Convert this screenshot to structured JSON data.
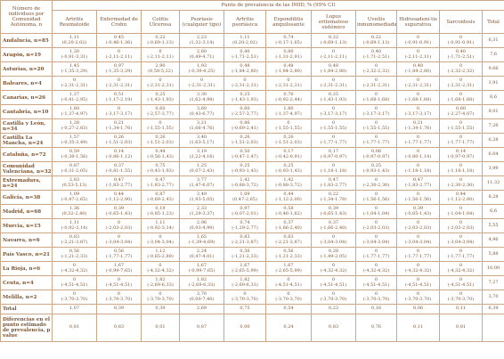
{
  "header": {
    "row_header": "Número de individuos por Comunidad Autónoma, n",
    "group_header": "Punto de prevalencia de las IMID, % (95% CI)",
    "columns": [
      "Artritis Reumatoide",
      "Enfermedad de Crohn",
      "Colitis Ulcerosa",
      "Psoriasis (cualquier tipo)",
      "Artritis psoriásica",
      "Espondilitis anquilosante",
      "Lupus eritematoso sistémico",
      "Uveítis inmunomediada",
      "Hidrosadeni-tis supurativa",
      "Sarcoidosis",
      "Total"
    ]
  },
  "rows": [
    {
      "region": "Andalucía, n=85",
      "cells": [
        [
          "1,11",
          "(0,20-2,02)"
        ],
        [
          "0,45",
          "(-0,46-1,36)"
        ],
        [
          "0,22",
          "(-0,69-1,13)"
        ],
        [
          "2,23",
          "(1,32-3,14)"
        ],
        [
          "1,11",
          "(0,20-2,02)"
        ],
        [
          "0,74",
          "(-0,17-1,65)"
        ],
        [
          "0,22",
          "(-0,69-1,13)"
        ],
        [
          "0,22",
          "(-0,69-1,13)"
        ],
        [
          "0",
          "(-0,91-0,91)"
        ],
        [
          "0",
          "(-0,91-0,91)"
        ],
        [
          "6,31",
          ""
        ]
      ]
    },
    {
      "region": "Aragón, n=19",
      "cells": [
        [
          "1,20",
          "(-0,91-3,31)"
        ],
        [
          "0",
          "(-2,11-2,11)"
        ],
        [
          "0",
          "(-2,11-2,11)"
        ],
        [
          "2,60",
          "(0,49-4,71)"
        ],
        [
          "0,40",
          "(-1,71-2,51)"
        ],
        [
          "0,80",
          "(-1,31-2,91)"
        ],
        [
          "0",
          "(-2,11-2,11)"
        ],
        [
          "0,40",
          "(-1,71-2,51)"
        ],
        [
          "0",
          "(-2,11-2,11)"
        ],
        [
          "0,40",
          "(-1,71-2,51)"
        ],
        [
          "7,6",
          ""
        ]
      ]
    },
    {
      "region": "Asturias, n=20",
      "cells": [
        [
          "1,45",
          "(-1,35-3,29)"
        ],
        [
          "0,97",
          "(-1,35-3,29)"
        ],
        [
          "2,90",
          "(0,58-5,22)"
        ],
        [
          "1,93",
          "(-0,39-4,25)"
        ],
        [
          "0,48",
          "(-1,84-2,80)"
        ],
        [
          "0,48",
          "(-1,84-2,80)"
        ],
        [
          "0,48",
          "(-1,84-2,80)"
        ],
        [
          "0",
          "(-2,32-2,32)"
        ],
        [
          "0,48",
          "(-1,84-2,80)"
        ],
        [
          "0",
          "(-2,32-2,32)"
        ],
        [
          "9,66",
          ""
        ]
      ]
    },
    {
      "region": "Baleares, n=4",
      "cells": [
        [
          "0",
          "(-2,31-2,31)"
        ],
        [
          "0",
          "(-2,31-2,31)"
        ],
        [
          "0",
          "(-2,31-2,31)"
        ],
        [
          "0",
          "(-2,31-2,31)"
        ],
        [
          "0",
          "(-2,31-2,31)"
        ],
        [
          "0",
          "(-2,31-2,31)"
        ],
        [
          "0",
          "(-2,31-2,31)"
        ],
        [
          "0",
          "(-2,31-2,31)"
        ],
        [
          "0",
          "(-2,31-2,31)"
        ],
        [
          "0",
          "(-2,31-2,31)"
        ],
        [
          "1,91",
          ""
        ]
      ]
    },
    {
      "region": "Canarias, n=26",
      "cells": [
        [
          "1,27",
          "(-0,41-2,95)"
        ],
        [
          "0,51",
          "(-1,17-2,19)"
        ],
        [
          "0,25",
          "(-1,43-1,93)"
        ],
        [
          "3,30",
          "(1,62-4,98)"
        ],
        [
          "0,25",
          "(-1,43-1,93)"
        ],
        [
          "0,76",
          "(-0,92-2,44)"
        ],
        [
          "0,25",
          "(-1,43-1,93)"
        ],
        [
          "0",
          "(-1,68-1,68)"
        ],
        [
          "0",
          "(-1,68-1,68)"
        ],
        [
          "0",
          "(-1,68-1,68)"
        ],
        [
          "6,6",
          ""
        ]
      ]
    },
    {
      "region": "Cantabria, n=10",
      "cells": [
        [
          "1,80",
          "(-1,37-4,97)"
        ],
        [
          "0",
          "(-3,17-3,17)"
        ],
        [
          "0,60",
          "(-2,57-3,77)"
        ],
        [
          "3,60",
          "(0,43-6,77)"
        ],
        [
          "0,60",
          "(-2,57-3,77)"
        ],
        [
          "1,80",
          "(-1,37-4,97)"
        ],
        [
          "0",
          "(-3,17-3,17)"
        ],
        [
          "0",
          "(-3,17-3,17)"
        ],
        [
          "0",
          "(-3,17-3,17)"
        ],
        [
          "0,60",
          "(-2,27-4,07)"
        ],
        [
          "9,01",
          ""
        ]
      ]
    },
    {
      "region": "Castilla y León, n=34",
      "cells": [
        [
          "1,28",
          "(-0,27-2,83)"
        ],
        [
          "0,21",
          "(-1,34-1,76)"
        ],
        [
          "0",
          "(-1,55-1,55)"
        ],
        [
          "3,21",
          "(1,66-4,76)"
        ],
        [
          "0,86",
          "(-0,69-2,41)"
        ],
        [
          "0",
          "(-1,55-1,55)"
        ],
        [
          "0",
          "(-1,55-1,55)"
        ],
        [
          "0",
          "(-1,55-1,55)"
        ],
        [
          "0,21",
          "(-1,34-1,76)"
        ],
        [
          "0",
          "(-1,55-1,55)"
        ],
        [
          "7,26",
          ""
        ]
      ]
    },
    {
      "region": "Castilla La Mancha, n=24",
      "cells": [
        [
          "1,57",
          "(-0,35-3,49)"
        ],
        [
          "0,26",
          "(-1,51-2,03)"
        ],
        [
          "0,26",
          "(-1,51-2,03)"
        ],
        [
          "3,40",
          "(1,63-5,17)"
        ],
        [
          "0,26",
          "(-1,51-2,03)"
        ],
        [
          "0,26",
          "(-1,51-2,03)"
        ],
        [
          "0",
          "(-1,77-1,77)"
        ],
        [
          "0",
          "(-1,77-1,77)"
        ],
        [
          "0",
          "(-1,77-1,77)"
        ],
        [
          "0",
          "(-1,77-1,77)"
        ],
        [
          "6,28",
          ""
        ]
      ]
    },
    {
      "region": "Cataluña, n=72",
      "cells": [
        [
          "0,59",
          "(-0,38-1,56)"
        ],
        [
          "0,14",
          "(-0,86-1,12)"
        ],
        [
          "0,44",
          "(-0,56-1,43)"
        ],
        [
          "3,19",
          "(2,22-4,16)"
        ],
        [
          "0,50",
          "(-0,47-1,47)"
        ],
        [
          "0,17",
          "(-0,42-0,91)"
        ],
        [
          "0,17",
          "(-0,97-0,97)"
        ],
        [
          "0,06",
          "(-0,97-0,97)"
        ],
        [
          "0",
          "(-0,80-1,14)"
        ],
        [
          "0,14",
          "(-0,97-0,97)"
        ],
        [
          "6,04",
          ""
        ]
      ]
    },
    {
      "region": "Comunidad Valenciana, n=32",
      "cells": [
        [
          "0,87",
          "(-0,31-2,05)"
        ],
        [
          "0,37",
          "(-0,81-1,55)"
        ],
        [
          "0,75",
          "(-0,43-1,93)"
        ],
        [
          "1,25",
          "(0,07-2,43)"
        ],
        [
          "0,25",
          "(-0,93-1,43)"
        ],
        [
          "0,25",
          "(-0,93-1,43)"
        ],
        [
          "0",
          "(-1,18-1,18)"
        ],
        [
          "0,25",
          "(-0,93-1,43)"
        ],
        [
          "0",
          "(-1,18-1,18)"
        ],
        [
          "0",
          "(-1,18-1,18)"
        ],
        [
          "3,99",
          ""
        ]
      ]
    },
    {
      "region": "Extremadura, n=24",
      "cells": [
        [
          "2,83",
          "(0,53-5,13)"
        ],
        [
          "0,47",
          "(-1,83-2,77)"
        ],
        [
          "0,47",
          "(-1,83-2,77)"
        ],
        [
          "3,77",
          "(1,47-6,07)"
        ],
        [
          "1,42",
          "(-0,88-3,72)"
        ],
        [
          "1,42",
          "(-0,88-3,72)"
        ],
        [
          "0,47",
          "(-1,83-2,77)"
        ],
        [
          "0",
          "(-2,30-2,30)"
        ],
        [
          "0,47",
          "(-1,83-2,77)"
        ],
        [
          "0",
          "(-2,30-2,30)"
        ],
        [
          "11,32",
          ""
        ]
      ]
    },
    {
      "region": "Galicia, n=38",
      "cells": [
        [
          "1,09",
          "(-0,47-2,65)"
        ],
        [
          "0,44",
          "(-1,12-2,00)"
        ],
        [
          "0,87",
          "(-0,69-2,43)"
        ],
        [
          "3,49",
          "(1,93-5,05)"
        ],
        [
          "1,09",
          "(0,47-2,65)"
        ],
        [
          "0,44",
          "(-1,12-2,00)"
        ],
        [
          "0,22",
          "(-1,34-1,78)"
        ],
        [
          "0",
          "(-1,56-1,56)"
        ],
        [
          "0",
          "(-1,56-1,56)"
        ],
        [
          "0,44",
          "(-1,12-2,00)"
        ],
        [
          "8,28",
          ""
        ]
      ]
    },
    {
      "region": "Madrid, n=68",
      "cells": [
        [
          "1,36",
          "(0,32-2,40)"
        ],
        [
          "0,39",
          "(-0,65-1,43)"
        ],
        [
          "0,19",
          "(-0,85-1,23)"
        ],
        [
          "2,33",
          "(1,29-3,37)"
        ],
        [
          "0,97",
          "(-0,07-2,01)"
        ],
        [
          "0,58",
          "(-0,46-1,62)"
        ],
        [
          "0,39",
          "(-0,65-1,43)"
        ],
        [
          "0",
          "(-1,04-1,04)"
        ],
        [
          "0,39",
          "(-0,65-1,43)"
        ],
        [
          "0",
          "(-1,04-1,04)"
        ],
        [
          "6,6",
          ""
        ]
      ]
    },
    {
      "region": "Murcia, n=15",
      "cells": [
        [
          "1,11",
          "(-0,92-3,14)"
        ],
        [
          "0",
          "(-2,03-2,03)"
        ],
        [
          "1,11",
          "(-0,92-3,14)"
        ],
        [
          "2,96",
          "(0,93-4,99)"
        ],
        [
          "0,74",
          "(-1,29-2,77)"
        ],
        [
          "0,37",
          "(-1,66-2,40)"
        ],
        [
          "0,37",
          "(-1,66-2,40)"
        ],
        [
          "0",
          "(-2,03-2,03)"
        ],
        [
          "0",
          "(-2,03-2,03)"
        ],
        [
          "0",
          "(-2,03-2,03)"
        ],
        [
          "5,55",
          ""
        ]
      ]
    },
    {
      "region": "Navarra, n=6",
      "cells": [
        [
          "0,83",
          "(-2,21-3,87)"
        ],
        [
          "0",
          "(-3,04-3,04)"
        ],
        [
          "0",
          "(-3,04-3,04)"
        ],
        [
          "1,65",
          "(-1,39-4,69)"
        ],
        [
          "0,83",
          "(-2,21-3,87)"
        ],
        [
          "0,83",
          "(-2,21-3,87)"
        ],
        [
          "0",
          "(-3,04-3,04)"
        ],
        [
          "0",
          "(-3,04-3,04)"
        ],
        [
          "0",
          "(-3,04-3,04)"
        ],
        [
          "0",
          "(-3,04-3,04)"
        ],
        [
          "4,96",
          ""
        ]
      ]
    },
    {
      "region": "País Vasco, n=21",
      "cells": [
        [
          "0,56",
          "(-1,21-2,33)"
        ],
        [
          "0,56",
          "(-1,77-1,77)"
        ],
        [
          "1,12",
          "(-0,65-2,89)"
        ],
        [
          "2,24",
          "(0,47-4,01)"
        ],
        [
          "0,56",
          "(-1,21-2,33)"
        ],
        [
          "0,56",
          "(-1,21-2,33)"
        ],
        [
          "0,28",
          "(-1,49-2,05)"
        ],
        [
          "0",
          "(-1,77-1,77)"
        ],
        [
          "0",
          "(-1,77-1,77)"
        ],
        [
          "0",
          "(-1,77-1,77)"
        ],
        [
          "5,88",
          ""
        ]
      ]
    },
    {
      "region": "La Rioja, n=6",
      "cells": [
        [
          "0",
          "(-4,32-4,32)"
        ],
        [
          "1,67",
          "(-0,99-7,65)"
        ],
        [
          "0",
          "(-4,32-4,32)"
        ],
        [
          "1,67",
          "(-0,99-7,65)"
        ],
        [
          "1,67",
          "(-2,65-5,99)"
        ],
        [
          "1,67",
          "(-2,65-5,99)"
        ],
        [
          "0",
          "(-4,32-4,32)"
        ],
        [
          "0",
          "(-4,32-4,32)"
        ],
        [
          "0",
          "(-4,32-4,32)"
        ],
        [
          "0",
          "(-4,32-4,32)"
        ],
        [
          "10,00",
          ""
        ]
      ]
    },
    {
      "region": "Ceuta, n=4",
      "cells": [
        [
          "0",
          "(-4,51-4,51)"
        ],
        [
          "0",
          "(-4,51-4,51)"
        ],
        [
          "1,82",
          "(-2,69-6,33)"
        ],
        [
          "1,82",
          "(-2,69-6,33)"
        ],
        [
          "1,82",
          "(-2,69-6,33)"
        ],
        [
          "0",
          "(-4,51-4,51)"
        ],
        [
          "0",
          "(-4,51-4,51)"
        ],
        [
          "0",
          "(-4,51-4,51)"
        ],
        [
          "0",
          "(-4,51-4,51)"
        ],
        [
          "0",
          "(-4,51-4,51)"
        ],
        [
          "7,27",
          ""
        ]
      ]
    },
    {
      "region": "Melilla, n=2",
      "cells": [
        [
          "0",
          "(-3,70-3,70)"
        ],
        [
          "0",
          "(-3,70-3,70)"
        ],
        [
          "0",
          "(-3,70-3,70)"
        ],
        [
          "3,70",
          "(0,00-7,40)"
        ],
        [
          "0",
          "(-3,70-3,70)"
        ],
        [
          "0",
          "(-3,70-3,70)"
        ],
        [
          "0",
          "(-3,70-3,70)"
        ],
        [
          "0",
          "(-3,70-3,70)"
        ],
        [
          "0",
          "(-3,70-3,70)"
        ],
        [
          "0",
          "(-3,70-3,70)"
        ],
        [
          "3,70",
          ""
        ]
      ]
    }
  ],
  "total_row": {
    "label": "Total",
    "cells": [
      "1,07",
      "0,39",
      "0,39",
      "2,69",
      "0,75",
      "0,54",
      "0,23",
      "0,16",
      "0,06",
      "0,11",
      "6,39"
    ]
  },
  "pvalue_row": {
    "label": "Diferencias en el punto estimado de prevalencia, p value",
    "cells": [
      "0,81",
      "0,83",
      "0,01",
      "0,87",
      "0,00",
      "0,24",
      "0,83",
      "0,76",
      "0,11",
      "0,81",
      ""
    ]
  }
}
